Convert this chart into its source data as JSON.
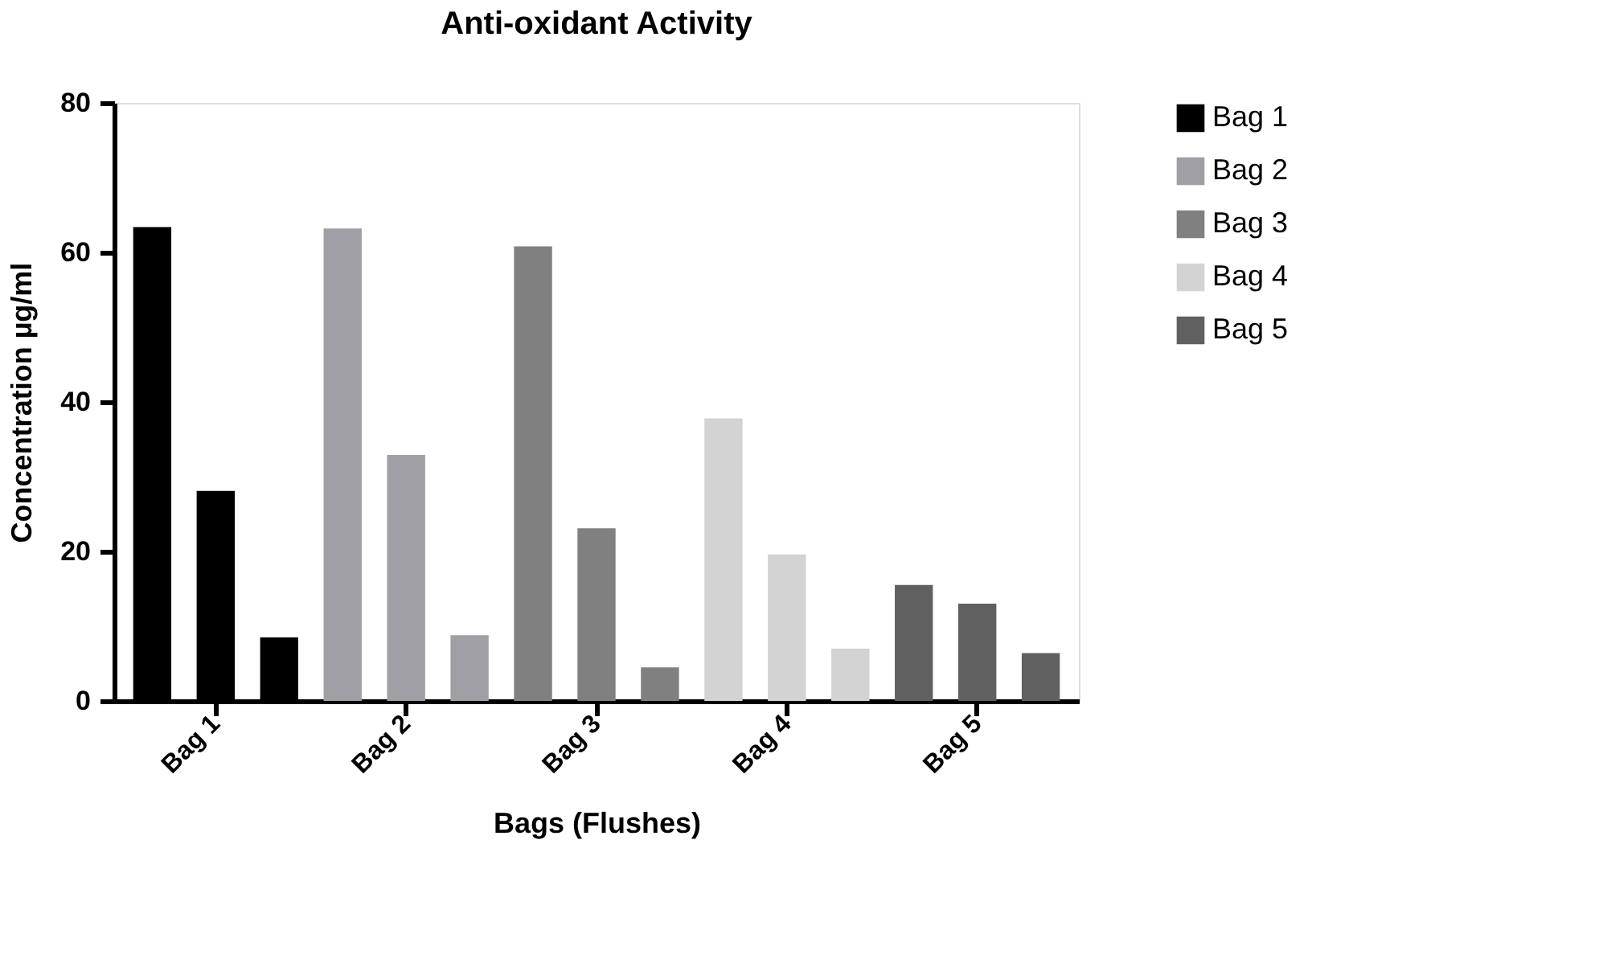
{
  "chart_data": {
    "type": "bar",
    "title": "Anti-oxidant Activity",
    "xlabel": "Bags (Flushes)",
    "ylabel": "Concentration µg/ml",
    "categories": [
      null,
      "Bag 1",
      null,
      null,
      "Bag 2",
      null,
      null,
      "Bag 3",
      null,
      null,
      "Bag 4",
      null,
      null,
      "Bag 5",
      null
    ],
    "series": [
      {
        "name": "Bag 1",
        "color": "#000000",
        "values": [
          63.4,
          28.1,
          8.5,
          null,
          null,
          null,
          null,
          null,
          null,
          null,
          null,
          null,
          null,
          null,
          null
        ]
      },
      {
        "name": "Bag 2",
        "color": "#a0a0a4",
        "values": [
          null,
          null,
          null,
          63.2,
          32.9,
          8.8,
          null,
          null,
          null,
          null,
          null,
          null,
          null,
          null,
          null
        ]
      },
      {
        "name": "Bag 3",
        "color": "#808080",
        "values": [
          null,
          null,
          null,
          null,
          null,
          null,
          60.8,
          23.1,
          4.5,
          null,
          null,
          null,
          null,
          null,
          null
        ]
      },
      {
        "name": "Bag 4",
        "color": "#d3d3d3",
        "values": [
          null,
          null,
          null,
          null,
          null,
          null,
          null,
          null,
          null,
          37.8,
          19.6,
          7.0,
          null,
          null,
          null
        ]
      },
      {
        "name": "Bag 5",
        "color": "#606060",
        "values": [
          null,
          null,
          null,
          null,
          null,
          null,
          null,
          null,
          null,
          null,
          null,
          null,
          15.5,
          13.0,
          6.4
        ]
      }
    ],
    "ylim": [
      0,
      80
    ],
    "yticks": [
      0,
      20,
      40,
      60,
      80
    ],
    "grid": false,
    "legend": "right"
  }
}
